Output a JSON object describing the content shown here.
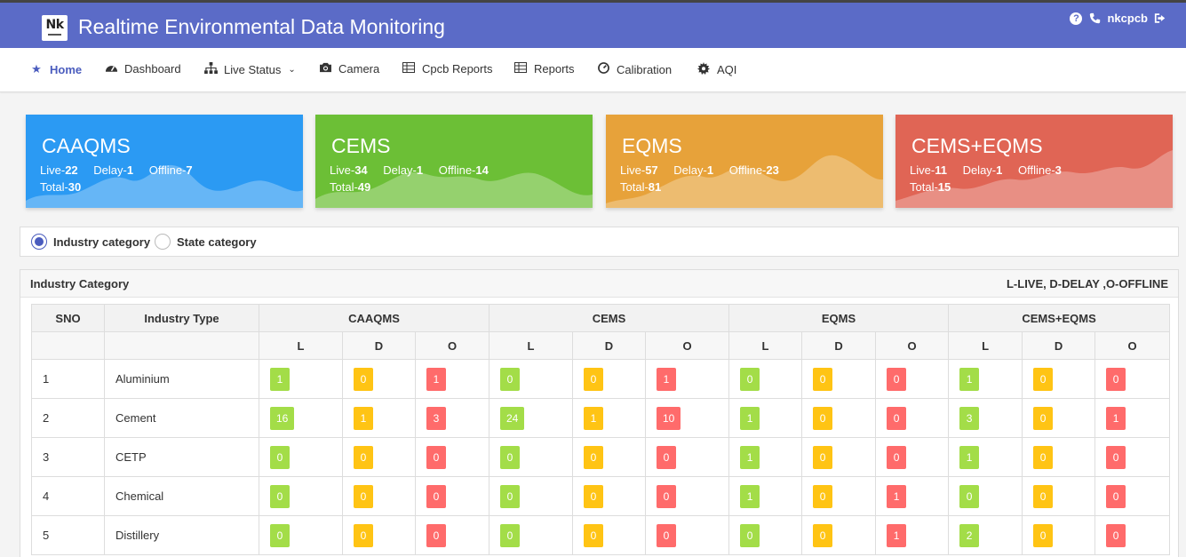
{
  "header": {
    "logo_text": "Nk",
    "title": "Realtime Environmental Data Monitoring",
    "user": "nkcpcb"
  },
  "nav": [
    {
      "label": "Home",
      "icon": "star-icon"
    },
    {
      "label": "Dashboard",
      "icon": "dashboard-icon"
    },
    {
      "label": "Live Status",
      "icon": "sitemap-icon"
    },
    {
      "label": "Camera",
      "icon": "camera-icon"
    },
    {
      "label": "Cpcb Reports",
      "icon": "table-icon"
    },
    {
      "label": "Reports",
      "icon": "table-icon"
    },
    {
      "label": "Calibration",
      "icon": "gauge-icon"
    },
    {
      "label": "AQI",
      "icon": "cog-icon"
    }
  ],
  "cards": [
    {
      "title": "CAAQMS",
      "live_label": "Live-",
      "live": "22",
      "delay_label": "Delay-",
      "delay": "1",
      "offline_label": "Offline-",
      "offline": "7",
      "total_label": "Total-",
      "total": "30",
      "color": "#2b9af3"
    },
    {
      "title": "CEMS",
      "live_label": "Live-",
      "live": "34",
      "delay_label": "Delay-",
      "delay": "1",
      "offline_label": "Offline-",
      "offline": "14",
      "total_label": "Total-",
      "total": "49",
      "color": "#6cbf36"
    },
    {
      "title": "EQMS",
      "live_label": "Live-",
      "live": "57",
      "delay_label": "Delay-",
      "delay": "1",
      "offline_label": "Offline-",
      "offline": "23",
      "total_label": "Total-",
      "total": "81",
      "color": "#e7a23a"
    },
    {
      "title": "CEMS+EQMS",
      "live_label": "Live-",
      "live": "11",
      "delay_label": "Delay-",
      "delay": "1",
      "offline_label": "Offline-",
      "offline": "3",
      "total_label": "Total-",
      "total": "15",
      "color": "#e06555"
    }
  ],
  "radios": {
    "industry": "Industry category",
    "state": "State category"
  },
  "panel": {
    "title": "Industry Category",
    "legend": "L-LIVE, D-DELAY ,O-OFFLINE"
  },
  "table": {
    "col_sno": "SNO",
    "col_type": "Industry Type",
    "groups": [
      "CAAQMS",
      "CEMS",
      "EQMS",
      "CEMS+EQMS"
    ],
    "sub": [
      "L",
      "D",
      "O"
    ],
    "rows": [
      {
        "sno": "1",
        "type": "Aluminium",
        "vals": [
          "1",
          "0",
          "1",
          "0",
          "0",
          "1",
          "0",
          "0",
          "0",
          "1",
          "0",
          "0"
        ]
      },
      {
        "sno": "2",
        "type": "Cement",
        "vals": [
          "16",
          "1",
          "3",
          "24",
          "1",
          "10",
          "1",
          "0",
          "0",
          "3",
          "0",
          "1"
        ]
      },
      {
        "sno": "3",
        "type": "CETP",
        "vals": [
          "0",
          "0",
          "0",
          "0",
          "0",
          "0",
          "1",
          "0",
          "0",
          "1",
          "0",
          "0"
        ]
      },
      {
        "sno": "4",
        "type": "Chemical",
        "vals": [
          "0",
          "0",
          "0",
          "0",
          "0",
          "0",
          "1",
          "0",
          "1",
          "0",
          "0",
          "0"
        ]
      },
      {
        "sno": "5",
        "type": "Distillery",
        "vals": [
          "0",
          "0",
          "0",
          "0",
          "0",
          "0",
          "0",
          "0",
          "1",
          "2",
          "0",
          "0"
        ]
      }
    ]
  }
}
